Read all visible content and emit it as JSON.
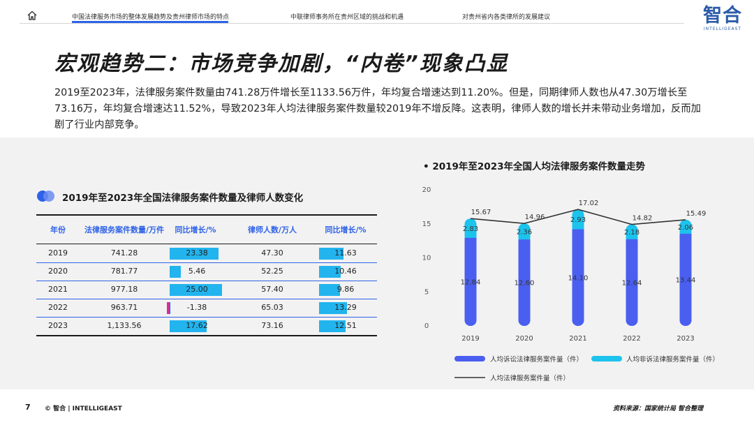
{
  "nav": {
    "items": [
      "中国法律服务市场的整体发展趋势及贵州律师市场的特点",
      "中联律师事务所在贵州区域的挑战和机遇",
      "对贵州省内各类律所的发展建议"
    ]
  },
  "logo": {
    "cn": "智合",
    "en": "INTELLIGEAST"
  },
  "title": "宏观趋势二：市场竞争加剧，“内卷”现象凸显",
  "paragraph": "2019至2023年，法律服务案件数量由741.28万件增长至1133.56万件，年均复合增速达到11.20%。但是，同期律师人数也从47.30万增长至 73.16万，年均复合增速达11.52%，导致2023年人均法律服务案件数量较2019年不增反降。这表明，律师人数的增长并未带动业务增加，反而加剧了行业内部竞争。",
  "table": {
    "title": "2019年至2023年全国法律服务案件数量及律师人数变化",
    "headers": [
      "年份",
      "法律服务案件数量/万件",
      "同比增长/%",
      "律师人数/万人",
      "同比增长/%"
    ],
    "rows": [
      {
        "year": "2019",
        "cases": "741.28",
        "cases_growth": "23.38",
        "cases_growth_val": 23.38,
        "lawyers": "47.30",
        "lawyers_growth": "11.63",
        "lawyers_growth_val": 11.63
      },
      {
        "year": "2020",
        "cases": "781.77",
        "cases_growth": "5.46",
        "cases_growth_val": 5.46,
        "lawyers": "52.25",
        "lawyers_growth": "10.46",
        "lawyers_growth_val": 10.46
      },
      {
        "year": "2021",
        "cases": "977.18",
        "cases_growth": "25.00",
        "cases_growth_val": 25.0,
        "lawyers": "57.40",
        "lawyers_growth": "9.86",
        "lawyers_growth_val": 9.86
      },
      {
        "year": "2022",
        "cases": "963.71",
        "cases_growth": "-1.38",
        "cases_growth_val": -1.38,
        "lawyers": "65.03",
        "lawyers_growth": "13.29",
        "lawyers_growth_val": 13.29
      },
      {
        "year": "2023",
        "cases": "1,133.56",
        "cases_growth": "17.62",
        "cases_growth_val": 17.62,
        "lawyers": "73.16",
        "lawyers_growth": "12.51",
        "lawyers_growth_val": 12.51
      }
    ],
    "colors": {
      "positive": "#22b4ee",
      "negative": "#d6309b",
      "header": "#2e62e8"
    }
  },
  "chart_data": {
    "type": "bar",
    "title": "2019年至2023年全国人均法律服务案件数量走势",
    "categories": [
      "2019",
      "2020",
      "2021",
      "2022",
      "2023"
    ],
    "series": [
      {
        "name": "人均诉讼法律服务案件量（件）",
        "type": "stacked-bar",
        "values": [
          12.84,
          12.6,
          14.1,
          12.64,
          13.44
        ],
        "color": "#4a5ff0"
      },
      {
        "name": "人均非诉法律服务案件量（件）",
        "type": "stacked-bar",
        "values": [
          2.83,
          2.36,
          2.93,
          2.18,
          2.06
        ],
        "color": "#1cc3ec"
      },
      {
        "name": "人均法律服务案件量（件）",
        "type": "line",
        "values": [
          15.67,
          14.96,
          17.02,
          14.82,
          15.49
        ],
        "color": "#333333"
      }
    ],
    "yticks": [
      "0",
      "5",
      "10",
      "15",
      "20"
    ],
    "ylim": [
      0,
      20
    ],
    "legend": "bottom",
    "grid": false
  },
  "footer": {
    "page": "7",
    "copyright": "© 智合 | INTELLIGEAST",
    "source": "资料来源：国家统计局 智合整理"
  }
}
